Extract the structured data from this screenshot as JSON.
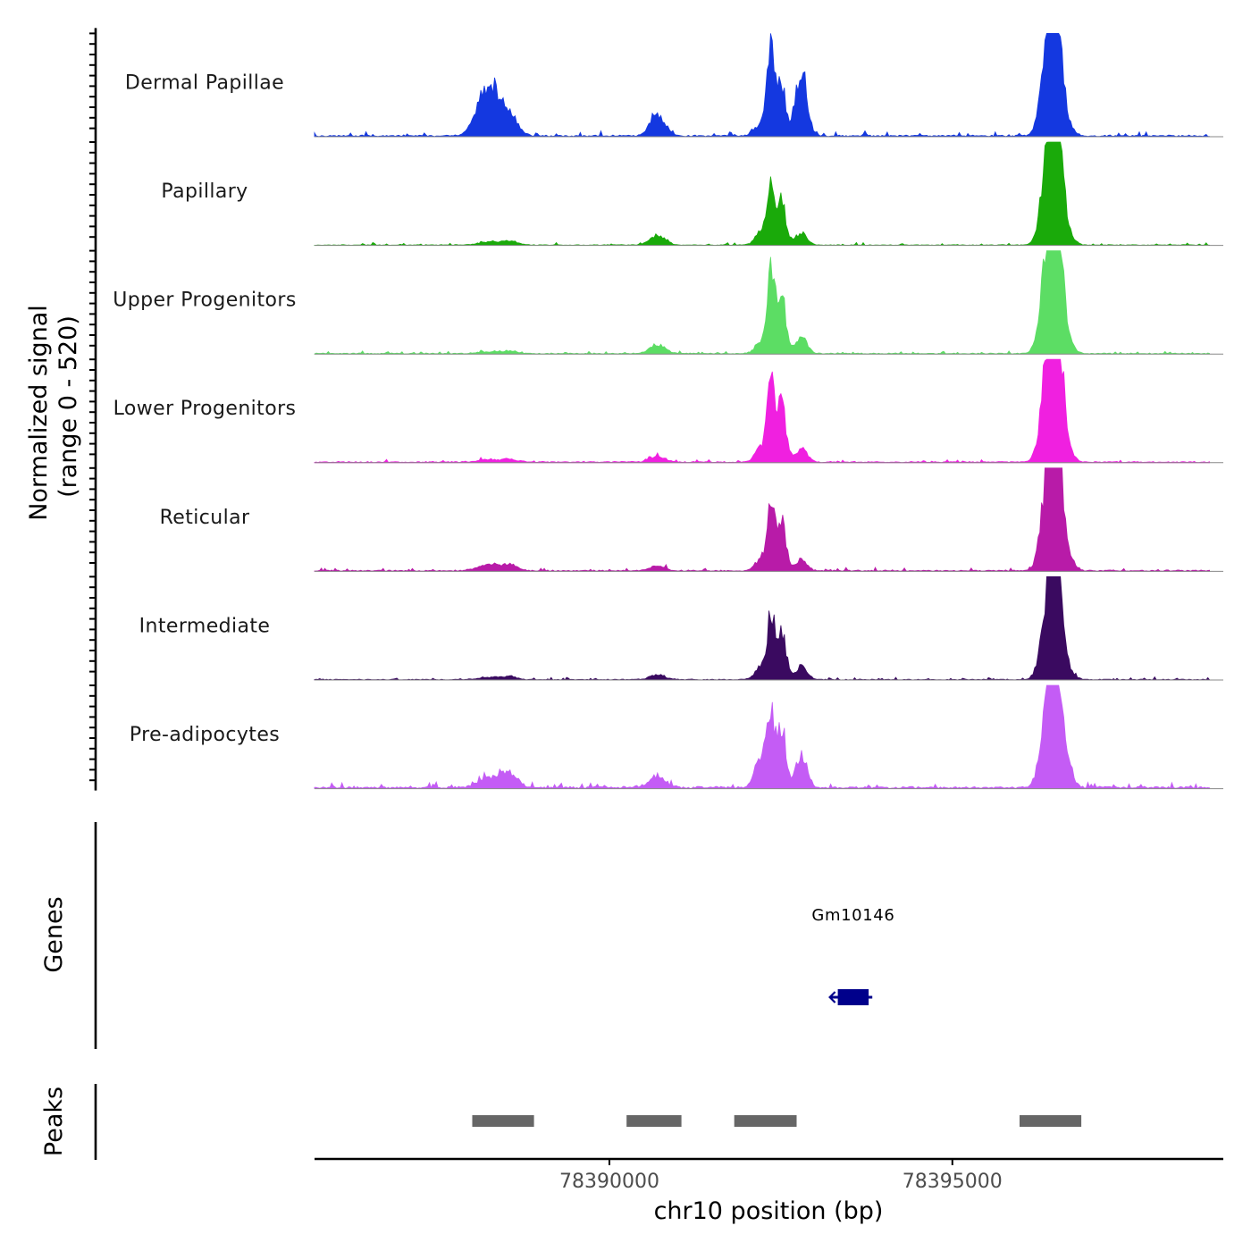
{
  "chart_data": {
    "type": "area",
    "title": "",
    "ylabel_line1": "Normalized signal",
    "ylabel_line2": "(range 0 - 520)",
    "yrange": [
      0,
      520
    ],
    "xlabel": "chr10 position (bp)",
    "xlim": [
      78385700,
      78398950
    ],
    "x_ticks": [
      78390000,
      78395000
    ],
    "x_tick_labels": [
      "78390000",
      "78395000"
    ],
    "genes_label": "Genes",
    "peaks_label": "Peaks",
    "peak_shapes": {
      "x": [
        78388250,
        78388550,
        78390700,
        78392200,
        78392350,
        78392500,
        78392800,
        78396400,
        78396450,
        78396550,
        78396650
      ],
      "w": [
        160,
        110,
        110,
        80,
        55,
        70,
        80,
        100,
        60,
        65,
        90
      ]
    },
    "tracks": [
      {
        "name": "Dermal Papillae",
        "color": "#1438e0",
        "peaks": [
          260,
          90,
          110,
          55,
          430,
          260,
          340,
          450,
          450,
          330,
          80
        ],
        "background": 13,
        "noise": 28
      },
      {
        "name": "Papillary",
        "color": "#1aaa0a",
        "peaks": [
          15,
          20,
          50,
          60,
          280,
          220,
          60,
          440,
          300,
          420,
          90
        ],
        "background": 6,
        "noise": 14
      },
      {
        "name": "Upper Progenitors",
        "color": "#5cdd64",
        "peaks": [
          10,
          12,
          45,
          55,
          420,
          300,
          90,
          520,
          400,
          440,
          100
        ],
        "background": 8,
        "noise": 14
      },
      {
        "name": "Lower Progenitors",
        "color": "#f020e0",
        "peaks": [
          12,
          12,
          30,
          65,
          380,
          300,
          70,
          500,
          400,
          470,
          100
        ],
        "background": 10,
        "noise": 16
      },
      {
        "name": "Reticular",
        "color": "#b81ba8",
        "peaks": [
          30,
          25,
          25,
          55,
          300,
          250,
          60,
          450,
          330,
          400,
          100
        ],
        "background": 10,
        "noise": 18
      },
      {
        "name": "Intermediate",
        "color": "#3a0a60",
        "peaks": [
          12,
          15,
          25,
          60,
          290,
          250,
          70,
          380,
          300,
          340,
          70
        ],
        "background": 7,
        "noise": 14
      },
      {
        "name": "Pre-adipocytes",
        "color": "#c45cf5",
        "peaks": [
          50,
          70,
          60,
          150,
          340,
          300,
          170,
          450,
          330,
          350,
          110
        ],
        "background": 18,
        "noise": 34
      }
    ],
    "genes": [
      {
        "name": "Gm10146",
        "start": 78393330,
        "end": 78393780,
        "strand": "-",
        "color": "#00008b"
      }
    ],
    "peak_regions": [
      {
        "start": 78388000,
        "end": 78388900
      },
      {
        "start": 78390250,
        "end": 78391050
      },
      {
        "start": 78391820,
        "end": 78392730
      },
      {
        "start": 78395980,
        "end": 78396880
      }
    ],
    "peak_region_color": "#666666"
  }
}
